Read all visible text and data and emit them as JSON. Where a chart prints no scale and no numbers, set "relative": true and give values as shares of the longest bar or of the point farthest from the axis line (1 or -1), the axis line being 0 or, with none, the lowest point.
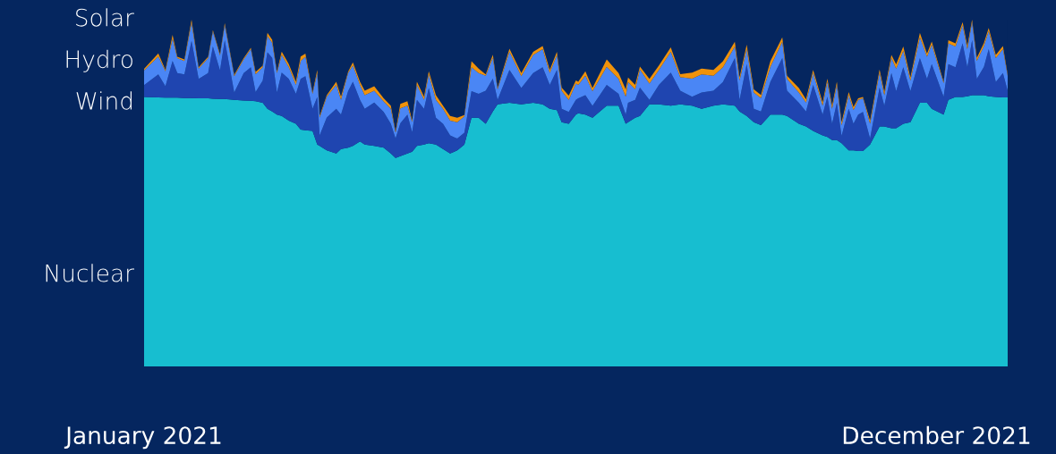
{
  "chart_data": {
    "type": "area",
    "stacked": true,
    "relative": true,
    "legend": false,
    "grid": false,
    "x": [
      "2021-01-01",
      "2021-01-07",
      "2021-01-10",
      "2021-01-13",
      "2021-01-15",
      "2021-01-18",
      "2021-01-21",
      "2021-01-24",
      "2021-01-28",
      "2021-01-30",
      "2021-02-02",
      "2021-02-04",
      "2021-02-08",
      "2021-02-12",
      "2021-02-15",
      "2021-02-17",
      "2021-02-20",
      "2021-02-22",
      "2021-02-24",
      "2021-02-26",
      "2021-02-28",
      "2021-03-03",
      "2021-03-06",
      "2021-03-08",
      "2021-03-10",
      "2021-03-13",
      "2021-03-15",
      "2021-03-16",
      "2021-03-19",
      "2021-03-23",
      "2021-03-25",
      "2021-03-28",
      "2021-03-30",
      "2021-04-02",
      "2021-04-04",
      "2021-04-08",
      "2021-04-12",
      "2021-04-15",
      "2021-04-17",
      "2021-04-19",
      "2021-04-22",
      "2021-04-24",
      "2021-04-26",
      "2021-04-29",
      "2021-05-01",
      "2021-05-04",
      "2021-05-07",
      "2021-05-10",
      "2021-05-13",
      "2021-05-16",
      "2021-05-19",
      "2021-05-22",
      "2021-05-25",
      "2021-05-28",
      "2021-05-30",
      "2021-06-04",
      "2021-06-09",
      "2021-06-14",
      "2021-06-18",
      "2021-06-21",
      "2021-06-24",
      "2021-06-26",
      "2021-06-29",
      "2021-07-02",
      "2021-07-03",
      "2021-07-06",
      "2021-07-09",
      "2021-07-15",
      "2021-07-20",
      "2021-07-23",
      "2021-07-24",
      "2021-07-27",
      "2021-07-29",
      "2021-08-02",
      "2021-08-06",
      "2021-08-11",
      "2021-08-15",
      "2021-08-20",
      "2021-08-24",
      "2021-08-29",
      "2021-09-02",
      "2021-09-07",
      "2021-09-09",
      "2021-09-12",
      "2021-09-15",
      "2021-09-18",
      "2021-09-22",
      "2021-09-27",
      "2021-09-29",
      "2021-10-04",
      "2021-10-07",
      "2021-10-10",
      "2021-10-14",
      "2021-10-16",
      "2021-10-18",
      "2021-10-20",
      "2021-10-22",
      "2021-10-25",
      "2021-10-27",
      "2021-10-29",
      "2021-10-31",
      "2021-11-03",
      "2021-11-07",
      "2021-11-09",
      "2021-11-12",
      "2021-11-14",
      "2021-11-17",
      "2021-11-20",
      "2021-11-24",
      "2021-11-27",
      "2021-11-29",
      "2021-12-04",
      "2021-12-06",
      "2021-12-09",
      "2021-12-12",
      "2021-12-14",
      "2021-12-16",
      "2021-12-18",
      "2021-12-21",
      "2021-12-23",
      "2021-12-26",
      "2021-12-29",
      "2021-12-31"
    ],
    "xlim": [
      "2021-01-01",
      "2021-12-31"
    ],
    "xticks": [
      {
        "value": "2021-01-01",
        "label": "January 2021"
      },
      {
        "value": "2021-12-01",
        "label": "December 2021"
      }
    ],
    "series": [
      {
        "name": "Nuclear",
        "color": "#17bed0",
        "values": [
          0.777,
          0.776,
          0.775,
          0.775,
          0.775,
          0.774,
          0.774,
          0.773,
          0.773,
          0.772,
          0.771,
          0.771,
          0.769,
          0.767,
          0.766,
          0.765,
          0.76,
          0.743,
          0.735,
          0.726,
          0.722,
          0.709,
          0.7,
          0.683,
          0.681,
          0.679,
          0.64,
          0.636,
          0.623,
          0.614,
          0.627,
          0.631,
          0.636,
          0.649,
          0.64,
          0.636,
          0.631,
          0.614,
          0.601,
          0.606,
          0.614,
          0.619,
          0.636,
          0.64,
          0.644,
          0.64,
          0.627,
          0.614,
          0.623,
          0.64,
          0.717,
          0.717,
          0.7,
          0.735,
          0.756,
          0.76,
          0.756,
          0.76,
          0.756,
          0.743,
          0.739,
          0.704,
          0.7,
          0.726,
          0.73,
          0.726,
          0.717,
          0.752,
          0.752,
          0.7,
          0.704,
          0.717,
          0.722,
          0.756,
          0.756,
          0.752,
          0.756,
          0.752,
          0.743,
          0.752,
          0.756,
          0.752,
          0.735,
          0.722,
          0.704,
          0.696,
          0.726,
          0.726,
          0.722,
          0.7,
          0.692,
          0.679,
          0.666,
          0.662,
          0.653,
          0.653,
          0.644,
          0.623,
          0.623,
          0.621,
          0.621,
          0.64,
          0.692,
          0.692,
          0.687,
          0.687,
          0.7,
          0.704,
          0.76,
          0.76,
          0.743,
          0.726,
          0.769,
          0.777,
          0.777,
          0.779,
          0.782,
          0.782,
          0.782,
          0.779,
          0.777,
          0.776,
          0.776
        ]
      },
      {
        "name": "Wind",
        "color": "#1f45b0",
        "values": [
          0.034,
          0.066,
          0.033,
          0.106,
          0.071,
          0.068,
          0.165,
          0.056,
          0.073,
          0.151,
          0.083,
          0.17,
          0.021,
          0.079,
          0.097,
          0.026,
          0.064,
          0.163,
          0.155,
          0.064,
          0.125,
          0.12,
          0.086,
          0.146,
          0.156,
          0.064,
          0.137,
          0.03,
          0.095,
          0.129,
          0.099,
          0.163,
          0.185,
          0.12,
          0.103,
          0.125,
          0.103,
          0.086,
          0.056,
          0.095,
          0.112,
          0.056,
          0.133,
          0.103,
          0.159,
          0.077,
          0.073,
          0.052,
          0.034,
          0.034,
          0.077,
          0.069,
          0.095,
          0.095,
          0.013,
          0.095,
          0.047,
          0.086,
          0.107,
          0.069,
          0.116,
          0.039,
          0.034,
          0.043,
          0.043,
          0.056,
          0.034,
          0.06,
          0.034,
          0.026,
          0.056,
          0.052,
          0.082,
          0.013,
          0.056,
          0.095,
          0.039,
          0.026,
          0.047,
          0.043,
          0.064,
          0.137,
          0.034,
          0.15,
          0.039,
          0.039,
          0.095,
          0.163,
          0.073,
          0.06,
          0.043,
          0.133,
          0.06,
          0.116,
          0.047,
          0.107,
          0.021,
          0.12,
          0.077,
          0.105,
          0.113,
          0.017,
          0.112,
          0.06,
          0.159,
          0.107,
          0.163,
          0.09,
          0.129,
          0.069,
          0.129,
          0.052,
          0.103,
          0.086,
          0.155,
          0.084,
          0.159,
          0.047,
          0.082,
          0.136,
          0.043,
          0.07,
          0.019
        ]
      },
      {
        "name": "Hydro",
        "color": "#4a86f5",
        "values": [
          0.043,
          0.052,
          0.043,
          0.064,
          0.043,
          0.039,
          0.052,
          0.03,
          0.043,
          0.043,
          0.043,
          0.043,
          0.047,
          0.039,
          0.052,
          0.052,
          0.039,
          0.047,
          0.043,
          0.056,
          0.052,
          0.034,
          0.026,
          0.052,
          0.056,
          0.043,
          0.069,
          0.052,
          0.06,
          0.069,
          0.043,
          0.052,
          0.047,
          0.043,
          0.039,
          0.034,
          0.03,
          0.043,
          0.017,
          0.043,
          0.026,
          0.03,
          0.043,
          0.026,
          0.039,
          0.052,
          0.043,
          0.043,
          0.047,
          0.047,
          0.069,
          0.06,
          0.043,
          0.06,
          0.03,
          0.052,
          0.034,
          0.052,
          0.052,
          0.034,
          0.043,
          0.052,
          0.034,
          0.047,
          0.039,
          0.056,
          0.043,
          0.052,
          0.043,
          0.052,
          0.06,
          0.03,
          0.052,
          0.047,
          0.043,
          0.06,
          0.039,
          0.052,
          0.052,
          0.043,
          0.043,
          0.034,
          0.056,
          0.043,
          0.047,
          0.039,
          0.043,
          0.047,
          0.034,
          0.03,
          0.026,
          0.034,
          0.026,
          0.043,
          0.043,
          0.052,
          0.03,
          0.039,
          0.039,
          0.043,
          0.039,
          0.043,
          0.043,
          0.03,
          0.043,
          0.064,
          0.047,
          0.03,
          0.06,
          0.064,
          0.056,
          0.039,
          0.06,
          0.06,
          0.052,
          0.052,
          0.052,
          0.052,
          0.06,
          0.052,
          0.069,
          0.069,
          0.043
        ]
      },
      {
        "name": "Solar",
        "color": "#f0920a",
        "values": [
          0.004,
          0.009,
          0.004,
          0.011,
          0.004,
          0.004,
          0.009,
          0.004,
          0.004,
          0.004,
          0.004,
          0.006,
          0.004,
          0.004,
          0.004,
          0.006,
          0.004,
          0.009,
          0.009,
          0.004,
          0.009,
          0.009,
          0.009,
          0.013,
          0.009,
          0.004,
          0.009,
          0.004,
          0.004,
          0.009,
          0.009,
          0.004,
          0.009,
          0.009,
          0.013,
          0.013,
          0.009,
          0.009,
          0.004,
          0.013,
          0.013,
          0.004,
          0.009,
          0.009,
          0.009,
          0.013,
          0.009,
          0.013,
          0.013,
          0.004,
          0.017,
          0.013,
          0.004,
          0.009,
          0.004,
          0.009,
          0.009,
          0.009,
          0.009,
          0.009,
          0.009,
          0.009,
          0.013,
          0.009,
          0.009,
          0.013,
          0.009,
          0.021,
          0.017,
          0.021,
          0.013,
          0.013,
          0.009,
          0.013,
          0.013,
          0.013,
          0.009,
          0.017,
          0.017,
          0.017,
          0.017,
          0.013,
          0.009,
          0.013,
          0.009,
          0.009,
          0.017,
          0.013,
          0.009,
          0.013,
          0.009,
          0.009,
          0.009,
          0.009,
          0.009,
          0.009,
          0.009,
          0.009,
          0.009,
          0.004,
          0.004,
          0.009,
          0.009,
          0.009,
          0.009,
          0.013,
          0.013,
          0.009,
          0.013,
          0.009,
          0.009,
          0.004,
          0.009,
          0.009,
          0.009,
          0.009,
          0.007,
          0.009,
          0.009,
          0.009,
          0.009,
          0.009,
          0.004
        ]
      }
    ]
  }
}
